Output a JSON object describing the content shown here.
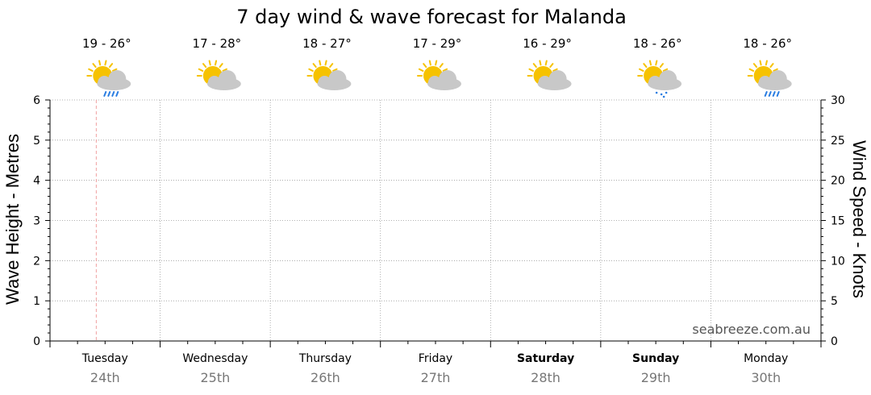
{
  "chart_data": {
    "type": "line",
    "title": "7 day wind & wave forecast for Malanda",
    "ylabel_left": "Wave Height - Metres",
    "ylabel_right": "Wind Speed - Knots",
    "ylim_left": [
      0,
      6
    ],
    "ylim_right": [
      0,
      30
    ],
    "yticks_left": [
      "0",
      "1",
      "2",
      "3",
      "4",
      "5",
      "6"
    ],
    "yticks_right": [
      "0",
      "5",
      "10",
      "15",
      "20",
      "25",
      "30"
    ],
    "grid": true,
    "watermark": "seabreeze.com.au",
    "days": [
      {
        "day": "Tuesday",
        "date": "24th",
        "temp": "19 - 26°",
        "weather": "rain-icon",
        "bold": false
      },
      {
        "day": "Wednesday",
        "date": "25th",
        "temp": "17 - 28°",
        "weather": "partly-cloudy-icon",
        "bold": false
      },
      {
        "day": "Thursday",
        "date": "26th",
        "temp": "18 - 27°",
        "weather": "partly-cloudy-icon",
        "bold": false
      },
      {
        "day": "Friday",
        "date": "27th",
        "temp": "17 - 29°",
        "weather": "partly-cloudy-icon",
        "bold": false
      },
      {
        "day": "Saturday",
        "date": "28th",
        "temp": "16 - 29°",
        "weather": "partly-cloudy-icon",
        "bold": true
      },
      {
        "day": "Sunday",
        "date": "29th",
        "temp": "18 - 26°",
        "weather": "showers-icon",
        "bold": true
      },
      {
        "day": "Monday",
        "date": "30th",
        "temp": "18 - 26°",
        "weather": "rain-icon",
        "bold": false
      }
    ],
    "series": []
  },
  "colors": {
    "grid": "#9a9a9a",
    "now_line": "#f0a0a0",
    "sun": "#f6c200",
    "cloud": "#c8c8c8",
    "rain": "#2a7de1"
  }
}
